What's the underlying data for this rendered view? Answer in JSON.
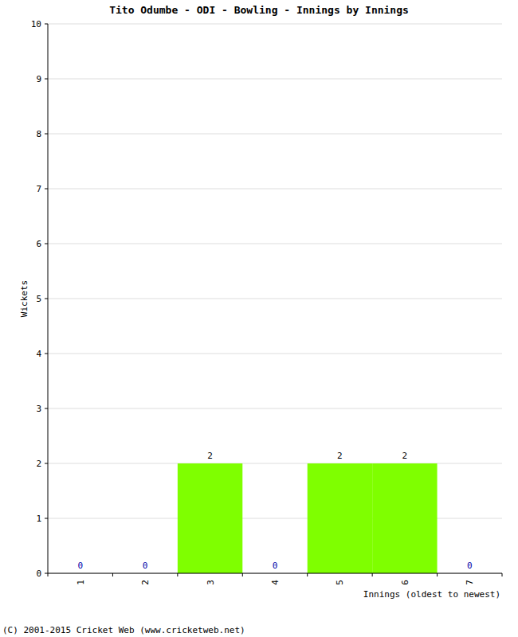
{
  "chart_data": {
    "type": "bar",
    "title": "Tito Odumbe - ODI - Bowling - Innings by Innings",
    "x_label": "Innings (oldest to newest)",
    "y_label": "Wickets",
    "annotations": [
      "(C) 2001-2015 Cricket Web (www.cricketweb.net)"
    ],
    "categories": [
      "1",
      "2",
      "3",
      "4",
      "5",
      "6",
      "7"
    ],
    "values": [
      0,
      0,
      2,
      0,
      2,
      2,
      0
    ],
    "color": "#7fff00",
    "ylim": [
      0,
      10
    ],
    "yticks": [
      0,
      1,
      2,
      3,
      4,
      5,
      6,
      7,
      8,
      9,
      10
    ],
    "grid": true,
    "data_labels": true
  }
}
